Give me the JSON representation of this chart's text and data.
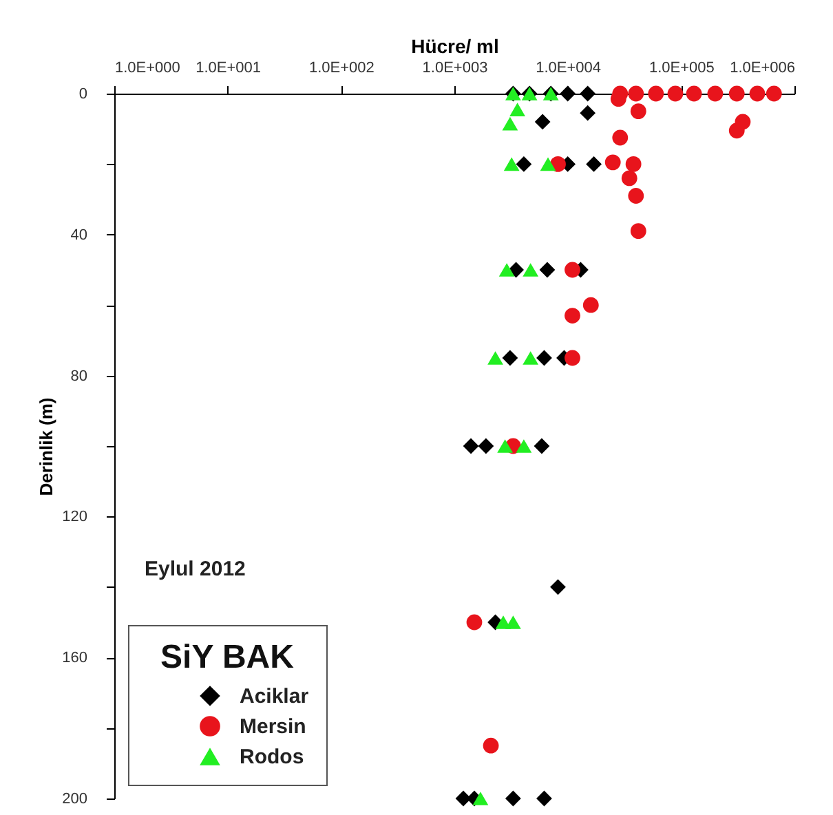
{
  "chart_data": {
    "type": "scatter",
    "xlabel": "Hücre/ ml",
    "ylabel": "Derinlik (m)",
    "legend_title": "SiY BAK",
    "annotations": [
      "Eylul 2012"
    ],
    "log": "x",
    "grid": false,
    "legend": "bottom left",
    "xlim": [
      1,
      1000000
    ],
    "xticks": [
      {
        "value": 1,
        "label": "1.0E+000"
      },
      {
        "value": 10,
        "label": "1.0E+001"
      },
      {
        "value": 100,
        "label": "1.0E+002"
      },
      {
        "value": 1000,
        "label": "1.0E+003"
      },
      {
        "value": 10000,
        "label": "1.0E+004"
      },
      {
        "value": 100000,
        "label": "1.0E+005"
      },
      {
        "value": 1000000,
        "label": "1.0E+006"
      }
    ],
    "ylim": [
      200,
      0
    ],
    "yticks": [
      0,
      {
        "value": 20,
        "label": null
      },
      40,
      {
        "value": 60,
        "label": null
      },
      80,
      {
        "value": 100,
        "label": null
      },
      120,
      {
        "value": 140,
        "label": null
      },
      160,
      {
        "value": 180,
        "label": null
      },
      200
    ],
    "series": [
      {
        "name": "Aciklar",
        "color": "#000000",
        "marker": "diamond",
        "x": [
          3300,
          4600,
          7100,
          10000,
          15000,
          6000,
          15000,
          4100,
          10000,
          17000,
          3500,
          6600,
          13000,
          3100,
          6200,
          9300,
          1400,
          1900,
          5900,
          8200,
          2300,
          1200,
          1500,
          3300,
          6200
        ],
        "values": [
          0,
          0,
          0,
          0,
          0,
          8,
          5.5,
          20,
          20,
          20,
          50,
          50,
          50,
          75,
          75,
          75,
          100,
          100,
          100,
          140,
          150,
          200,
          200,
          200,
          200
        ]
      },
      {
        "name": "Mersin",
        "color": "#e8141c",
        "marker": "circle",
        "x": [
          29000,
          40000,
          60000,
          89000,
          130000,
          200000,
          310000,
          470000,
          660000,
          28000,
          42000,
          310000,
          350000,
          29000,
          25000,
          38000,
          35000,
          40000,
          42000,
          8200,
          11000,
          16000,
          11000,
          11000,
          3300,
          1500,
          2100
        ],
        "values": [
          0,
          0,
          0,
          0,
          0,
          0,
          0,
          0,
          0,
          1.5,
          5,
          10.5,
          8,
          12.5,
          19.5,
          20,
          24,
          29,
          39,
          20,
          50,
          60,
          63,
          75,
          100,
          150,
          185
        ]
      },
      {
        "name": "Rodos",
        "color": "#22ee22",
        "marker": "triangle",
        "x": [
          3300,
          4600,
          7100,
          3100,
          3600,
          3200,
          6700,
          2900,
          4700,
          2300,
          4700,
          2800,
          4100,
          2700,
          3300,
          1700
        ],
        "values": [
          0,
          0,
          0,
          8.5,
          4.5,
          20,
          20,
          50,
          50,
          75,
          75,
          100,
          100,
          150,
          150,
          200
        ]
      }
    ]
  }
}
